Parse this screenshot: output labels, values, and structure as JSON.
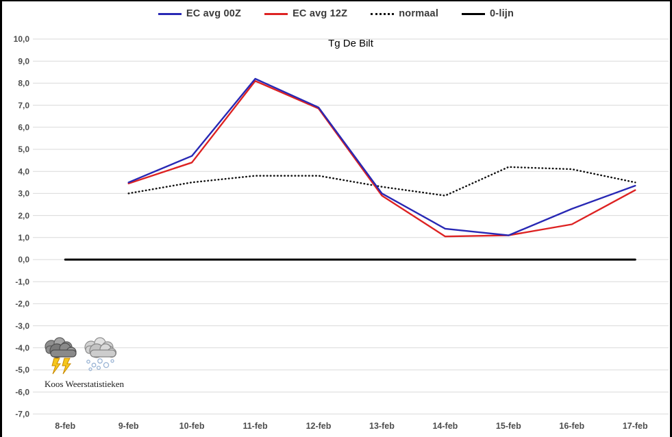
{
  "page": {
    "title": "Tg De Bilt"
  },
  "legend": {
    "items": [
      {
        "label": "EC avg 00Z",
        "color": "#2828b4",
        "style": "solid"
      },
      {
        "label": "EC avg 12Z",
        "color": "#dd2222",
        "style": "solid"
      },
      {
        "label": "normaal",
        "color": "#111111",
        "style": "dotted"
      },
      {
        "label": "0-lijn",
        "color": "#000000",
        "style": "solid"
      }
    ]
  },
  "footer": {
    "credit": "Koos Weerstatistieken"
  },
  "icons": [
    {
      "name": "thunderstorm-icon"
    },
    {
      "name": "snow-icon"
    }
  ],
  "chart_data": {
    "type": "line",
    "title": "Tg De Bilt",
    "xlabel": "",
    "ylabel": "",
    "ylim": [
      -7,
      10
    ],
    "grid": true,
    "legend_position": "top",
    "categories": [
      "8-feb",
      "9-feb",
      "10-feb",
      "11-feb",
      "12-feb",
      "13-feb",
      "14-feb",
      "15-feb",
      "16-feb",
      "17-feb"
    ],
    "y_ticks": [
      {
        "label": "10,0",
        "value": 10
      },
      {
        "label": "9,0",
        "value": 9
      },
      {
        "label": "8,0",
        "value": 8
      },
      {
        "label": "7,0",
        "value": 7
      },
      {
        "label": "6,0",
        "value": 6
      },
      {
        "label": "5,0",
        "value": 5
      },
      {
        "label": "4,0",
        "value": 4
      },
      {
        "label": "3,0",
        "value": 3
      },
      {
        "label": "2,0",
        "value": 2
      },
      {
        "label": "1,0",
        "value": 1
      },
      {
        "label": "0,0",
        "value": 0
      },
      {
        "label": "-1,0",
        "value": -1
      },
      {
        "label": "-2,0",
        "value": -2
      },
      {
        "label": "-3,0",
        "value": -3
      },
      {
        "label": "-4,0",
        "value": -4
      },
      {
        "label": "-5,0",
        "value": -5
      },
      {
        "label": "-6,0",
        "value": -6
      },
      {
        "label": "-7,0",
        "value": -7
      }
    ],
    "series": [
      {
        "name": "EC avg 00Z",
        "color": "#2828b4",
        "style": "solid",
        "width": 2.4,
        "values": [
          null,
          3.5,
          4.7,
          8.2,
          6.9,
          3.0,
          1.4,
          1.1,
          2.3,
          3.35
        ]
      },
      {
        "name": "EC avg 12Z",
        "color": "#dd2222",
        "style": "solid",
        "width": 2.4,
        "values": [
          null,
          3.45,
          4.4,
          8.1,
          6.85,
          2.9,
          1.05,
          1.1,
          1.6,
          3.15
        ]
      },
      {
        "name": "normaal",
        "color": "#111111",
        "style": "dotted",
        "width": 2.5,
        "values": [
          null,
          3.0,
          3.5,
          3.8,
          3.8,
          3.3,
          2.9,
          4.2,
          4.1,
          3.5
        ]
      },
      {
        "name": "0-lijn",
        "color": "#000000",
        "style": "solid",
        "width": 3,
        "values": [
          0,
          0,
          0,
          0,
          0,
          0,
          0,
          0,
          0,
          0
        ]
      }
    ]
  }
}
